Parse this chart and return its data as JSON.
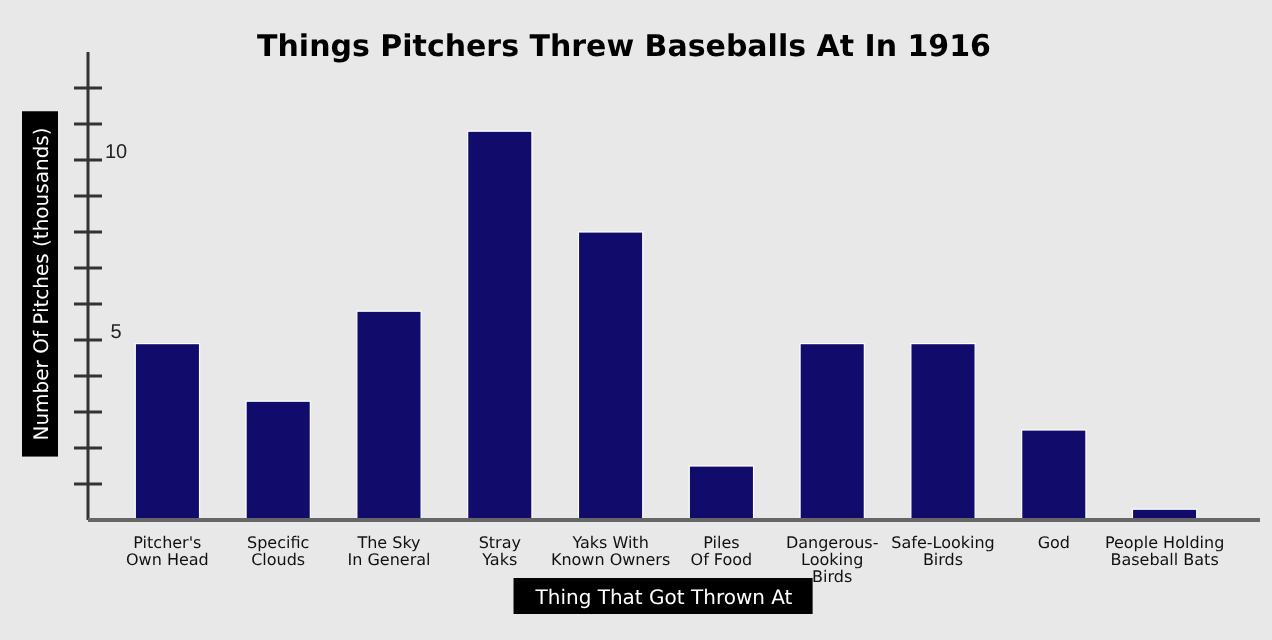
{
  "chart_data": {
    "type": "bar",
    "title": "Things Pitchers Threw Baseballs At In 1916",
    "xlabel": "Thing That Got Thrown At",
    "ylabel": "Number Of Pitches (thousands)",
    "categories": [
      "Pitcher's\nOwn Head",
      "Specific\nClouds",
      "The Sky\nIn General",
      "Stray\nYaks",
      "Yaks With\nKnown Owners",
      "Piles\nOf Food",
      "Dangerous-\nLooking\nBirds",
      "Safe-Looking\nBirds",
      "God",
      "People Holding\nBaseball Bats"
    ],
    "values": [
      4.9,
      3.3,
      5.8,
      10.8,
      8.0,
      1.5,
      4.9,
      4.9,
      2.5,
      0.3
    ],
    "color": "#110c6b",
    "ylim": [
      0,
      13
    ],
    "yticks": [
      {
        "value": 1,
        "label": null
      },
      {
        "value": 2,
        "label": null
      },
      {
        "value": 3,
        "label": null
      },
      {
        "value": 4,
        "label": null
      },
      5,
      {
        "value": 6,
        "label": null
      },
      {
        "value": 7,
        "label": null
      },
      {
        "value": 8,
        "label": null
      },
      {
        "value": 9,
        "label": null
      },
      10,
      {
        "value": 11,
        "label": null
      },
      {
        "value": 12,
        "label": null
      }
    ],
    "grid": false
  }
}
